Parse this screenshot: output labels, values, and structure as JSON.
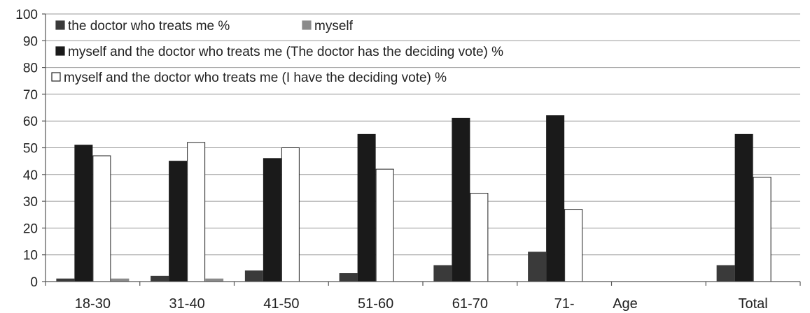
{
  "chart_data": {
    "type": "bar",
    "title": "",
    "xlabel": "Age",
    "ylabel": "",
    "ylim": [
      0,
      100
    ],
    "yticks": [
      0,
      10,
      20,
      30,
      40,
      50,
      60,
      70,
      80,
      90,
      100
    ],
    "grid": true,
    "legend_position": "top-left",
    "categories": [
      "18-30",
      "31-40",
      "41-50",
      "51-60",
      "61-70",
      "71-",
      "Total"
    ],
    "series": [
      {
        "name": "the doctor who treats me %",
        "color": "#3a3a3a",
        "values": [
          1,
          2,
          4,
          3,
          6,
          11,
          6
        ]
      },
      {
        "name": "myself",
        "color": "#8a8a8a",
        "values": [
          0,
          0,
          0,
          0,
          0,
          0,
          0
        ]
      },
      {
        "name": "myself and the doctor who treats me (The doctor has the deciding vote) %",
        "color": "#1a1a1a",
        "values": [
          51,
          45,
          46,
          55,
          61,
          62,
          55
        ]
      },
      {
        "name": "myself and the doctor who treats me (I have the deciding vote) %",
        "color": "#ffffff",
        "values": [
          47,
          52,
          50,
          42,
          33,
          27,
          39
        ]
      },
      {
        "name": "myself",
        "color": "#8a8a8a",
        "values": [
          1,
          1,
          0,
          0,
          0,
          0,
          0
        ]
      }
    ]
  }
}
